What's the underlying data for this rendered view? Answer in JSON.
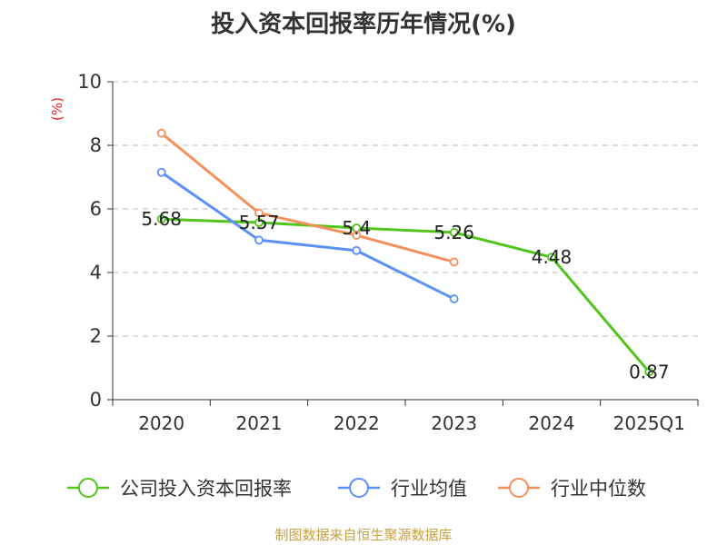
{
  "title": "投入资本回报率历年情况(%)",
  "source": "制图数据来自恒生聚源数据库",
  "colors": {
    "company": "#52c41a",
    "industry_avg": "#5b8ff9",
    "industry_median": "#f6905a",
    "unit_label": "#e02020",
    "axis": "#333333",
    "grid": "#bbbbbb",
    "source": "#c8a040"
  },
  "chart_data": {
    "type": "line",
    "title": "投入资本回报率历年情况(%)",
    "ylabel": "(%)",
    "categories": [
      "2020",
      "2021",
      "2022",
      "2023",
      "2024",
      "2025Q1"
    ],
    "ylim": [
      0,
      10
    ],
    "yticks": [
      0,
      2,
      4,
      6,
      8,
      10
    ],
    "grid": true,
    "legend_position": "bottom",
    "series": [
      {
        "name": "公司投入资本回报率",
        "color": "#52c41a",
        "values": [
          5.68,
          5.57,
          5.4,
          5.26,
          4.48,
          0.87
        ],
        "labels": true
      },
      {
        "name": "行业均值",
        "color": "#5b8ff9",
        "values": [
          7.15,
          5.02,
          4.69,
          3.17,
          null,
          null
        ],
        "labels": false
      },
      {
        "name": "行业中位数",
        "color": "#f6905a",
        "values": [
          8.38,
          5.87,
          5.17,
          4.33,
          null,
          null
        ],
        "labels": false
      }
    ]
  }
}
